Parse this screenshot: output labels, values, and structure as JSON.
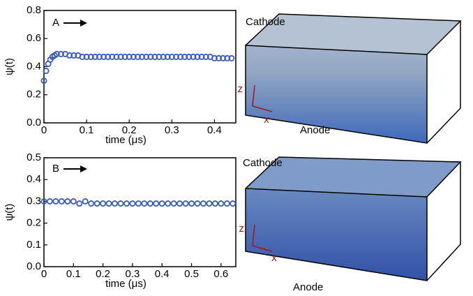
{
  "chart_data": [
    {
      "type": "scatter",
      "panel_label": "A",
      "xlabel": "time (μs)",
      "ylabel": "ψ(t)",
      "annotations": [
        "Cathode",
        "Anode",
        "z",
        "x"
      ],
      "xlim": [
        0,
        0.45
      ],
      "ylim": [
        0,
        0.8
      ],
      "xticks": [
        0,
        0.1,
        0.2,
        0.3,
        0.4
      ],
      "yticks": [
        {
          "value": 0,
          "label": "0.0"
        },
        0.2,
        0.4,
        0.6,
        0.8
      ],
      "series": [
        {
          "color": "#3a5bb8",
          "x": [
            0,
            0.005,
            0.01,
            0.015,
            0.02,
            0.025,
            0.03,
            0.04,
            0.05,
            0.06,
            0.07,
            0.08,
            0.09,
            0.1,
            0.11,
            0.12,
            0.13,
            0.14,
            0.15,
            0.16,
            0.17,
            0.18,
            0.19,
            0.2,
            0.21,
            0.22,
            0.23,
            0.24,
            0.25,
            0.26,
            0.27,
            0.28,
            0.29,
            0.3,
            0.31,
            0.32,
            0.33,
            0.34,
            0.35,
            0.36,
            0.37,
            0.38,
            0.39,
            0.4,
            0.41,
            0.42,
            0.43,
            0.44
          ],
          "values": [
            0.3,
            0.37,
            0.42,
            0.45,
            0.47,
            0.48,
            0.49,
            0.49,
            0.49,
            0.48,
            0.48,
            0.48,
            0.47,
            0.47,
            0.47,
            0.47,
            0.47,
            0.47,
            0.47,
            0.47,
            0.47,
            0.47,
            0.47,
            0.47,
            0.47,
            0.47,
            0.47,
            0.47,
            0.47,
            0.47,
            0.47,
            0.47,
            0.47,
            0.47,
            0.47,
            0.47,
            0.47,
            0.47,
            0.47,
            0.47,
            0.47,
            0.47,
            0.47,
            0.46,
            0.46,
            0.46,
            0.46,
            0.46
          ]
        }
      ]
    },
    {
      "type": "scatter",
      "panel_label": "B",
      "xlabel": "time (μs)",
      "ylabel": "ψ(t)",
      "annotations": [
        "Cathode",
        "Anode",
        "z",
        "x"
      ],
      "xlim": [
        0,
        0.65
      ],
      "ylim": [
        0,
        0.5
      ],
      "xticks": [
        0,
        0.1,
        0.2,
        0.3,
        0.4,
        0.5,
        0.6
      ],
      "yticks": [
        {
          "value": 0,
          "label": "0.0"
        },
        0.1,
        0.2,
        0.3,
        0.4,
        0.5
      ],
      "series": [
        {
          "color": "#3a5bb8",
          "x": [
            0,
            0.02,
            0.04,
            0.06,
            0.08,
            0.1,
            0.12,
            0.14,
            0.16,
            0.18,
            0.2,
            0.22,
            0.24,
            0.26,
            0.28,
            0.3,
            0.32,
            0.34,
            0.36,
            0.38,
            0.4,
            0.42,
            0.44,
            0.46,
            0.48,
            0.5,
            0.52,
            0.54,
            0.56,
            0.58,
            0.6,
            0.62,
            0.64
          ],
          "values": [
            0.3,
            0.3,
            0.3,
            0.3,
            0.3,
            0.3,
            0.29,
            0.3,
            0.29,
            0.29,
            0.29,
            0.29,
            0.29,
            0.29,
            0.29,
            0.29,
            0.29,
            0.29,
            0.29,
            0.29,
            0.29,
            0.29,
            0.29,
            0.29,
            0.29,
            0.29,
            0.29,
            0.29,
            0.29,
            0.29,
            0.29,
            0.29,
            0.29
          ]
        }
      ]
    }
  ]
}
